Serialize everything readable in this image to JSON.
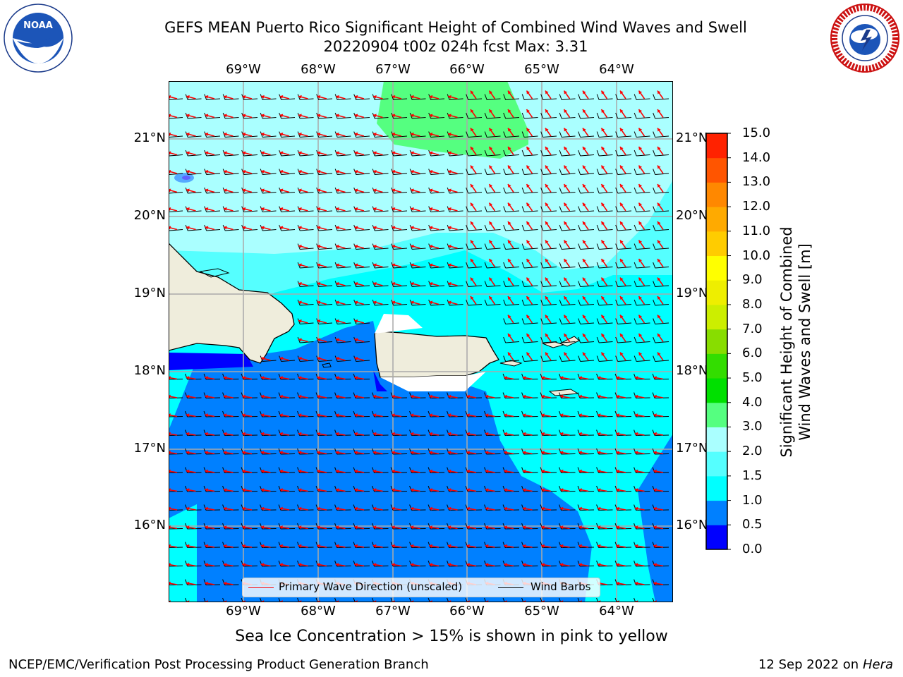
{
  "header": {
    "title_line1": "GEFS MEAN Puerto Rico Significant Height of Combined Wind Waves and Swell",
    "title_line2": "20220904 t00z 024h fcst   Max: 3.31"
  },
  "logos": {
    "left": {
      "name": "noaa-logo",
      "text": "NOAA",
      "ring_text": "NATIONAL OCEANIC AND ATMOSPHERIC ADMINISTRATION • U.S. DEPARTMENT OF COMMERCE"
    },
    "right": {
      "name": "nws-logo",
      "ring_text": "NATIONAL WEATHER SERVICE"
    }
  },
  "map": {
    "lon_ticks": [
      "69°W",
      "68°W",
      "67°W",
      "66°W",
      "65°W",
      "64°W"
    ],
    "lat_ticks": [
      "21°N",
      "20°N",
      "19°N",
      "18°N",
      "17°N",
      "16°N"
    ],
    "legend": {
      "wave_label": "Primary Wave Direction (unscaled)",
      "wind_label": "Wind Barbs",
      "wave_color": "#ff0000",
      "wind_color": "#000000"
    }
  },
  "colorbar": {
    "label_line1": "Significant Height of Combined",
    "label_line2": "Wind Waves and Swell [m]",
    "ticks": [
      "15.0",
      "14.0",
      "13.0",
      "12.0",
      "11.0",
      "10.0",
      "9.0",
      "8.0",
      "7.0",
      "6.0",
      "5.0",
      "4.0",
      "3.0",
      "2.0",
      "1.5",
      "1.0",
      "0.5",
      "0.0"
    ],
    "colors": [
      "#0000ff",
      "#0080ff",
      "#00ffff",
      "#55ffff",
      "#aaffff",
      "#55ff80",
      "#00e000",
      "#33dd00",
      "#88dd00",
      "#ccee00",
      "#eeee00",
      "#ffff00",
      "#ffcc00",
      "#ffaa00",
      "#ff8800",
      "#ff5500",
      "#ff2200"
    ]
  },
  "footnote": "Sea Ice Concentration > 15% is shown in pink to yellow",
  "footer": {
    "left": "NCEP/EMC/Verification Post Processing Product Generation Branch",
    "right_date": "12 Sep 2022 on",
    "right_host": "Hera"
  }
}
